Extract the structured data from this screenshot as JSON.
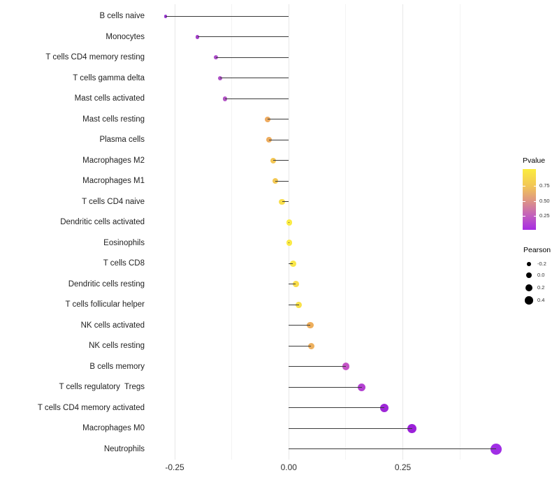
{
  "figure": {
    "x_axis": {
      "ticks": [
        {
          "value": -0.25,
          "label": "-0.25"
        },
        {
          "value": 0.0,
          "label": "0.00"
        },
        {
          "value": 0.25,
          "label": "0.25"
        }
      ],
      "minor_ticks": [
        -0.125,
        0.125,
        0.375
      ]
    },
    "legend_pvalue": {
      "title": "Pvalue",
      "tick_labels": [
        "0.75",
        "0.50",
        "0.25"
      ],
      "tick_fractions_from_bottom": [
        0.724,
        0.477,
        0.23
      ],
      "gradient_bottom_to_top": [
        "#A72CE3",
        "#C25FBE",
        "#DE9584",
        "#F2C657",
        "#FBEC3E"
      ]
    },
    "legend_pearson": {
      "title": "Pearson",
      "labels": [
        "-0.2",
        "0.0",
        "0.2",
        "0.4"
      ],
      "dot_color": "#000000"
    }
  },
  "chart_data": {
    "type": "lollipop",
    "orientation": "horizontal",
    "title": "",
    "xlabel": "",
    "ylabel": "",
    "xlim": [
      -0.3,
      0.48
    ],
    "grid": "vertical-only",
    "legend_position": "right",
    "categories": [
      "B cells naive",
      "Monocytes",
      "T cells CD4 memory resting",
      "T cells gamma delta",
      "Mast cells activated",
      "Mast cells resting",
      "Plasma cells",
      "Macrophages M2",
      "Macrophages M1",
      "T cells CD4 naive",
      "Dendritic cells activated",
      "Eosinophils",
      "T cells CD8",
      "Dendritic cells resting",
      "T cells follicular helper",
      "NK cells activated",
      "NK cells resting",
      "B cells memory",
      "T cells regulatory  Tregs",
      "T cells CD4 memory activated",
      "Macrophages M0",
      "Neutrophils"
    ],
    "series": [
      {
        "name": "Pearson",
        "values": [
          -0.27,
          -0.2,
          -0.16,
          -0.15,
          -0.14,
          -0.047,
          -0.043,
          -0.034,
          -0.029,
          -0.015,
          0.001,
          0.001,
          0.009,
          0.015,
          0.022,
          0.047,
          0.049,
          0.125,
          0.16,
          0.21,
          0.27,
          0.455
        ]
      }
    ],
    "point_colors": [
      "#9A36D4",
      "#A33EC9",
      "#AB4BC8",
      "#AE50C7",
      "#B254C5",
      "#EDAA5F",
      "#EDAC5E",
      "#F3C654",
      "#F3C853",
      "#F8DE4B",
      "#FBEB45",
      "#FBEA46",
      "#FAE748",
      "#F8DC4B",
      "#F9E14A",
      "#EDAE5C",
      "#EDB05E",
      "#C454C6",
      "#B341D1",
      "#9E27D7",
      "#9B20D9",
      "#A02EE5"
    ],
    "stem_color": "#3A3A3A"
  }
}
